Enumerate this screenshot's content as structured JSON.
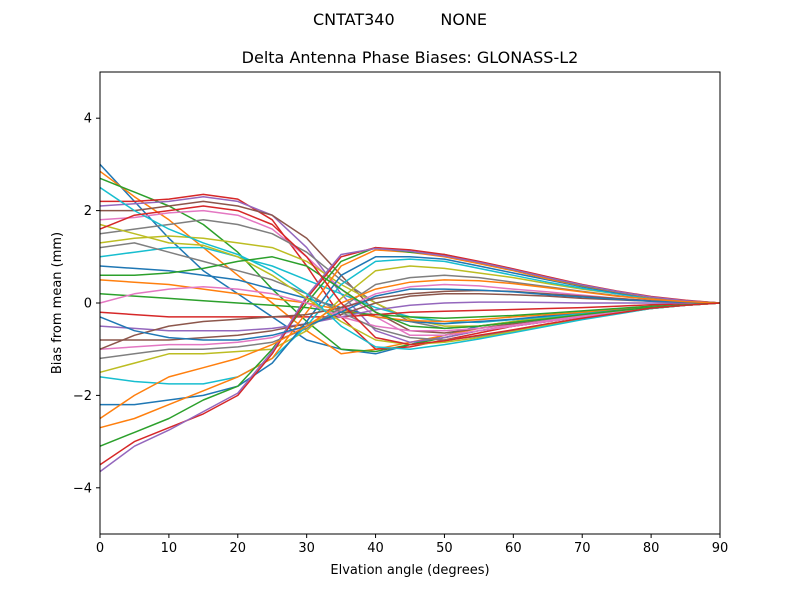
{
  "figure": {
    "suptitle": "CNTAT340         NONE"
  },
  "chart_data": {
    "type": "line",
    "title": "Delta Antenna Phase Biases: GLONASS-L2",
    "xlabel": "Elvation angle (degrees)",
    "ylabel": "Bias from mean (mm)",
    "xlim": [
      0,
      90
    ],
    "ylim": [
      -5,
      5
    ],
    "xticks": [
      0,
      10,
      20,
      30,
      40,
      50,
      60,
      70,
      80,
      90
    ],
    "yticks": [
      -4,
      -2,
      0,
      2,
      4
    ],
    "ytick_labels": [
      "−4",
      "−2",
      "0",
      "2",
      "4"
    ],
    "grid": false,
    "legend": "none",
    "colors": [
      "#1f77b4",
      "#ff7f0e",
      "#2ca02c",
      "#d62728",
      "#9467bd",
      "#8c564b",
      "#e377c2",
      "#7f7f7f",
      "#bcbd22",
      "#17becf"
    ],
    "x": [
      0,
      5,
      10,
      15,
      20,
      25,
      30,
      35,
      40,
      45,
      50,
      55,
      60,
      65,
      70,
      75,
      80,
      85,
      90
    ],
    "series": [
      {
        "values": [
          3.0,
          2.2,
          1.4,
          0.7,
          0.2,
          -0.3,
          -0.8,
          -1.0,
          -1.1,
          -0.9,
          -0.7,
          -0.5,
          -0.4,
          -0.3,
          -0.2,
          -0.15,
          -0.1,
          -0.05,
          0
        ]
      },
      {
        "values": [
          2.85,
          2.3,
          1.8,
          1.2,
          0.6,
          0.0,
          -0.6,
          -1.1,
          -1.0,
          -0.85,
          -0.7,
          -0.55,
          -0.45,
          -0.35,
          -0.25,
          -0.15,
          -0.1,
          -0.05,
          0
        ]
      },
      {
        "values": [
          2.7,
          2.4,
          2.1,
          1.7,
          1.1,
          0.3,
          -0.4,
          -1.0,
          -1.05,
          -0.9,
          -0.75,
          -0.6,
          -0.5,
          -0.4,
          -0.3,
          -0.2,
          -0.12,
          -0.05,
          0
        ]
      },
      {
        "values": [
          2.2,
          2.2,
          2.25,
          2.35,
          2.25,
          1.8,
          0.8,
          -0.3,
          -1.0,
          -0.95,
          -0.8,
          -0.65,
          -0.5,
          -0.4,
          -0.3,
          -0.2,
          -0.1,
          -0.05,
          0
        ]
      },
      {
        "values": [
          2.1,
          2.15,
          2.2,
          2.3,
          2.2,
          1.9,
          1.2,
          0.2,
          -0.6,
          -0.85,
          -0.75,
          -0.6,
          -0.5,
          -0.4,
          -0.3,
          -0.2,
          -0.1,
          -0.05,
          0
        ]
      },
      {
        "values": [
          2.0,
          2.0,
          2.1,
          2.2,
          2.1,
          1.9,
          1.4,
          0.6,
          -0.2,
          -0.6,
          -0.65,
          -0.55,
          -0.45,
          -0.35,
          -0.28,
          -0.2,
          -0.12,
          -0.05,
          0
        ]
      },
      {
        "values": [
          1.8,
          1.85,
          1.95,
          2.0,
          1.9,
          1.6,
          1.0,
          0.3,
          -0.3,
          -0.7,
          -0.7,
          -0.6,
          -0.5,
          -0.4,
          -0.3,
          -0.2,
          -0.1,
          -0.05,
          0
        ]
      },
      {
        "values": [
          1.5,
          1.6,
          1.7,
          1.8,
          1.7,
          1.5,
          1.1,
          0.5,
          0.0,
          -0.4,
          -0.55,
          -0.5,
          -0.42,
          -0.35,
          -0.27,
          -0.18,
          -0.1,
          -0.05,
          0
        ]
      },
      {
        "values": [
          1.3,
          1.4,
          1.45,
          1.4,
          1.3,
          1.2,
          0.9,
          0.4,
          0.0,
          -0.35,
          -0.5,
          -0.5,
          -0.4,
          -0.32,
          -0.25,
          -0.18,
          -0.1,
          -0.05,
          0
        ]
      },
      {
        "values": [
          1.0,
          1.1,
          1.2,
          1.2,
          1.0,
          0.8,
          0.5,
          0.2,
          -0.1,
          -0.3,
          -0.4,
          -0.42,
          -0.36,
          -0.3,
          -0.22,
          -0.15,
          -0.08,
          -0.04,
          0
        ]
      },
      {
        "values": [
          0.8,
          0.75,
          0.7,
          0.6,
          0.5,
          0.3,
          0.1,
          -0.1,
          -0.3,
          -0.4,
          -0.45,
          -0.4,
          -0.35,
          -0.28,
          -0.2,
          -0.14,
          -0.08,
          -0.04,
          0
        ]
      },
      {
        "values": [
          0.5,
          0.45,
          0.4,
          0.3,
          0.2,
          0.1,
          0.0,
          -0.15,
          -0.3,
          -0.38,
          -0.4,
          -0.36,
          -0.3,
          -0.25,
          -0.2,
          -0.13,
          -0.07,
          -0.03,
          0
        ]
      },
      {
        "values": [
          0.2,
          0.15,
          0.1,
          0.05,
          0.0,
          -0.05,
          -0.1,
          -0.2,
          -0.25,
          -0.3,
          -0.33,
          -0.3,
          -0.27,
          -0.22,
          -0.17,
          -0.12,
          -0.07,
          -0.03,
          0
        ]
      },
      {
        "values": [
          -0.2,
          -0.25,
          -0.3,
          -0.3,
          -0.3,
          -0.3,
          -0.3,
          -0.3,
          -0.25,
          -0.2,
          -0.18,
          -0.16,
          -0.14,
          -0.12,
          -0.1,
          -0.07,
          -0.04,
          -0.02,
          0
        ]
      },
      {
        "values": [
          -0.5,
          -0.55,
          -0.6,
          -0.6,
          -0.6,
          -0.55,
          -0.45,
          -0.3,
          -0.15,
          -0.05,
          0.0,
          0.02,
          0.02,
          0.01,
          0.0,
          0.0,
          0.0,
          0.0,
          0
        ]
      },
      {
        "values": [
          -0.8,
          -0.8,
          -0.8,
          -0.75,
          -0.7,
          -0.6,
          -0.45,
          -0.25,
          0.0,
          0.15,
          0.2,
          0.2,
          0.18,
          0.15,
          0.1,
          0.07,
          0.04,
          0.02,
          0
        ]
      },
      {
        "values": [
          -1.0,
          -0.95,
          -0.9,
          -0.9,
          -0.85,
          -0.75,
          -0.5,
          -0.15,
          0.2,
          0.35,
          0.4,
          0.37,
          0.3,
          0.24,
          0.17,
          0.1,
          0.05,
          0.02,
          0
        ]
      },
      {
        "values": [
          -1.2,
          -1.1,
          -1.0,
          -1.0,
          -0.95,
          -0.85,
          -0.55,
          -0.1,
          0.4,
          0.55,
          0.6,
          0.55,
          0.45,
          0.35,
          0.25,
          0.16,
          0.08,
          0.03,
          0
        ]
      },
      {
        "values": [
          -1.5,
          -1.3,
          -1.1,
          -1.1,
          -1.05,
          -1.0,
          -0.6,
          0.1,
          0.7,
          0.8,
          0.75,
          0.65,
          0.55,
          0.42,
          0.3,
          0.2,
          0.1,
          0.04,
          0
        ]
      },
      {
        "values": [
          -1.6,
          -1.7,
          -1.75,
          -1.75,
          -1.6,
          -1.2,
          -0.5,
          0.4,
          0.9,
          0.95,
          0.9,
          0.75,
          0.6,
          0.45,
          0.32,
          0.2,
          0.1,
          0.04,
          0
        ]
      },
      {
        "values": [
          -2.2,
          -2.2,
          -2.1,
          -2.0,
          -1.8,
          -1.3,
          -0.4,
          0.6,
          1.0,
          1.0,
          0.95,
          0.8,
          0.65,
          0.5,
          0.35,
          0.22,
          0.12,
          0.05,
          0
        ]
      },
      {
        "values": [
          -2.7,
          -2.5,
          -2.2,
          -1.9,
          -1.6,
          -1.2,
          -0.2,
          0.8,
          1.15,
          1.1,
          1.0,
          0.85,
          0.7,
          0.52,
          0.37,
          0.24,
          0.12,
          0.05,
          0
        ]
      },
      {
        "values": [
          -3.1,
          -2.8,
          -2.5,
          -2.1,
          -1.8,
          -1.0,
          0.0,
          0.9,
          1.2,
          1.1,
          1.05,
          0.88,
          0.72,
          0.55,
          0.38,
          0.25,
          0.13,
          0.05,
          0
        ]
      },
      {
        "values": [
          -3.5,
          -3.0,
          -2.7,
          -2.4,
          -2.0,
          -1.1,
          0.1,
          1.0,
          1.2,
          1.15,
          1.05,
          0.9,
          0.74,
          0.57,
          0.4,
          0.26,
          0.14,
          0.06,
          0
        ]
      },
      {
        "values": [
          -3.65,
          -3.1,
          -2.75,
          -2.35,
          -1.95,
          -1.05,
          0.15,
          1.05,
          1.18,
          1.12,
          1.02,
          0.88,
          0.72,
          0.55,
          0.39,
          0.25,
          0.13,
          0.05,
          0
        ]
      },
      {
        "values": [
          -1.0,
          -0.7,
          -0.5,
          -0.4,
          -0.35,
          -0.3,
          -0.25,
          -0.1,
          0.1,
          0.2,
          0.25,
          0.27,
          0.25,
          0.2,
          0.15,
          0.1,
          0.05,
          0.02,
          0
        ]
      },
      {
        "values": [
          0.0,
          0.2,
          0.3,
          0.35,
          0.3,
          0.2,
          0.0,
          -0.3,
          -0.5,
          -0.6,
          -0.6,
          -0.55,
          -0.48,
          -0.38,
          -0.28,
          -0.18,
          -0.09,
          -0.04,
          0
        ]
      },
      {
        "values": [
          1.2,
          1.3,
          1.1,
          0.9,
          0.7,
          0.5,
          0.2,
          -0.2,
          -0.55,
          -0.75,
          -0.8,
          -0.72,
          -0.6,
          -0.47,
          -0.35,
          -0.23,
          -0.12,
          -0.05,
          0
        ]
      },
      {
        "values": [
          1.7,
          1.5,
          1.3,
          1.25,
          1.0,
          0.6,
          0.1,
          -0.4,
          -0.8,
          -0.9,
          -0.85,
          -0.75,
          -0.62,
          -0.48,
          -0.35,
          -0.23,
          -0.12,
          -0.05,
          0
        ]
      },
      {
        "values": [
          2.5,
          2.0,
          1.6,
          1.3,
          1.05,
          0.7,
          0.2,
          -0.5,
          -0.95,
          -1.0,
          -0.9,
          -0.78,
          -0.64,
          -0.5,
          -0.36,
          -0.24,
          -0.12,
          -0.05,
          0
        ]
      },
      {
        "values": [
          -0.3,
          -0.6,
          -0.75,
          -0.8,
          -0.8,
          -0.7,
          -0.5,
          -0.2,
          0.15,
          0.3,
          0.3,
          0.28,
          0.24,
          0.18,
          0.13,
          0.08,
          0.04,
          0.02,
          0
        ]
      },
      {
        "values": [
          -2.5,
          -2.0,
          -1.6,
          -1.4,
          -1.2,
          -0.9,
          -0.5,
          0.0,
          0.3,
          0.45,
          0.5,
          0.48,
          0.42,
          0.33,
          0.24,
          0.15,
          0.08,
          0.03,
          0
        ]
      },
      {
        "values": [
          0.6,
          0.6,
          0.65,
          0.75,
          0.9,
          1.0,
          0.8,
          0.3,
          -0.2,
          -0.5,
          -0.55,
          -0.5,
          -0.42,
          -0.34,
          -0.25,
          -0.17,
          -0.09,
          -0.04,
          0
        ]
      },
      {
        "values": [
          1.6,
          1.9,
          2.0,
          2.1,
          2.0,
          1.7,
          1.0,
          0.0,
          -0.75,
          -0.9,
          -0.82,
          -0.7,
          -0.58,
          -0.45,
          -0.33,
          -0.22,
          -0.11,
          -0.05,
          0
        ]
      }
    ]
  }
}
